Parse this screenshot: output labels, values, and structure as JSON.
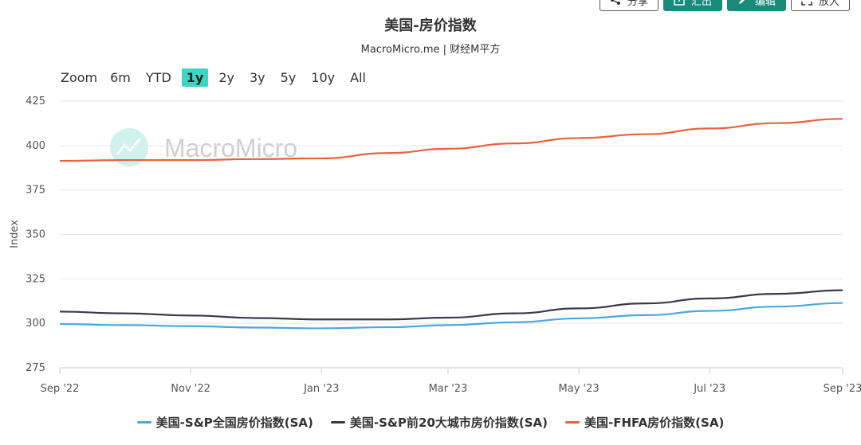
{
  "toolbar": {
    "buttons": [
      {
        "name": "share-button",
        "label": "分享",
        "style": "outline",
        "icon": "share-icon"
      },
      {
        "name": "export-button",
        "label": "汇出",
        "style": "teal",
        "icon": "export-icon"
      },
      {
        "name": "edit-button",
        "label": "编辑",
        "style": "teal",
        "icon": "edit-icon"
      },
      {
        "name": "enlarge-button",
        "label": "放大",
        "style": "outline",
        "icon": "enlarge-icon"
      }
    ]
  },
  "watermark": "MacroMicro",
  "zoom": {
    "label": "Zoom",
    "options": [
      "6m",
      "YTD",
      "1y",
      "2y",
      "3y",
      "5y",
      "10y",
      "All"
    ],
    "selected": "1y"
  },
  "chart_data": {
    "type": "line",
    "title": "美国-房价指数",
    "subtitle": "MacroMicro.me | 财经M平方",
    "ylabel": "Index",
    "xlabel": "",
    "ylim": [
      275,
      425
    ],
    "yticks": [
      275,
      300,
      325,
      350,
      375,
      400,
      425
    ],
    "xlim": [
      "2022-09-01",
      "2023-09-01"
    ],
    "xticks": [
      {
        "date": "2022-09-01",
        "label": "Sep '22"
      },
      {
        "date": "2022-11-01",
        "label": "Nov '22"
      },
      {
        "date": "2023-01-01",
        "label": "Jan '23"
      },
      {
        "date": "2023-03-01",
        "label": "Mar '23"
      },
      {
        "date": "2023-05-01",
        "label": "May '23"
      },
      {
        "date": "2023-07-01",
        "label": "Jul '23"
      },
      {
        "date": "2023-09-01",
        "label": "Sep '23"
      }
    ],
    "grid": true,
    "legend_position": "bottom",
    "x": [
      "2022-09-01",
      "2022-10-01",
      "2022-11-01",
      "2022-12-01",
      "2023-01-01",
      "2023-02-01",
      "2023-03-01",
      "2023-04-01",
      "2023-05-01",
      "2023-06-01",
      "2023-07-01",
      "2023-08-01",
      "2023-09-01"
    ],
    "series": [
      {
        "name": "美国-S&P全国房价指数(SA)",
        "color": "#4aa8dc",
        "values": [
          299.6,
          299.0,
          298.4,
          297.6,
          297.2,
          297.8,
          299.0,
          300.6,
          302.8,
          304.6,
          307.0,
          309.4,
          311.4
        ]
      },
      {
        "name": "美国-S&P前20大城市房价指数(SA)",
        "color": "#3a3a4a",
        "values": [
          306.6,
          305.6,
          304.4,
          303.0,
          302.2,
          302.2,
          303.2,
          305.6,
          308.4,
          311.2,
          314.0,
          316.6,
          318.6
        ]
      },
      {
        "name": "美国-FHFA房价指数(SA)",
        "color": "#e8623e",
        "values": [
          391.4,
          391.8,
          391.8,
          392.4,
          392.8,
          395.8,
          398.2,
          401.2,
          404.2,
          406.4,
          409.6,
          412.6,
          415.0
        ]
      }
    ]
  }
}
